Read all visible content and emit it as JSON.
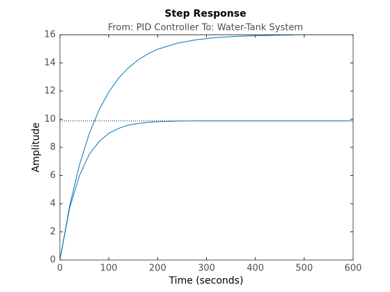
{
  "chart_data": {
    "type": "line",
    "title": "Step Response",
    "subtitle": "From: PID Controller  To: Water-Tank System",
    "x_label": "Time (seconds)",
    "y_label": "Amplitude",
    "xlim": [
      0,
      600
    ],
    "xticks": [
      0,
      100,
      200,
      300,
      400,
      500,
      600
    ],
    "ylim": [
      0,
      16
    ],
    "yticks": [
      0,
      2,
      4,
      6,
      8,
      10,
      12,
      14,
      16
    ],
    "reference_lines": [
      16,
      9.88
    ],
    "series": [
      {
        "color": "#0072bd",
        "x": [
          0,
          20,
          40,
          60,
          80,
          100,
          120,
          140,
          160,
          180,
          200,
          240,
          280,
          320,
          360,
          400,
          440,
          480
        ],
        "values": [
          0,
          3.84,
          6.75,
          8.97,
          10.65,
          11.94,
          12.91,
          13.65,
          14.21,
          14.64,
          14.97,
          15.4,
          15.65,
          15.8,
          15.88,
          15.93,
          15.96,
          15.98
        ]
      },
      {
        "color": "#0072bd",
        "x": [
          0,
          20,
          40,
          60,
          80,
          100,
          120,
          140,
          160,
          180,
          200,
          240,
          280,
          320,
          400,
          500,
          600
        ],
        "values": [
          0,
          3.7,
          6.0,
          7.5,
          8.4,
          9.0,
          9.35,
          9.58,
          9.7,
          9.78,
          9.83,
          9.87,
          9.88,
          9.88,
          9.88,
          9.88,
          9.88
        ]
      }
    ]
  }
}
